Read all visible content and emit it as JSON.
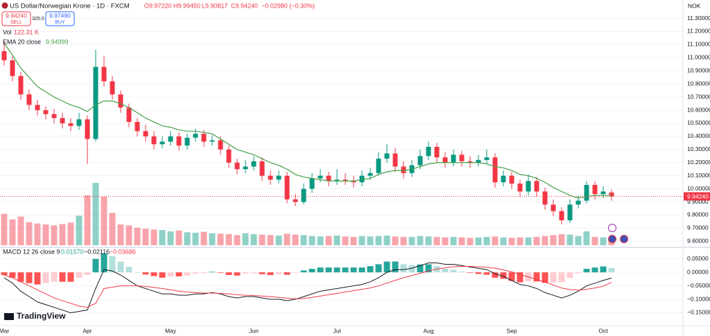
{
  "chart_data": [
    {
      "type": "candlestick",
      "title": "US Dollar/Norwegian Krone · 1D · FXCM",
      "ohlc_text": [
        "O9.97220",
        "H9.99450",
        "L9.90817",
        "C9.94240",
        "−0.02980 (−0.30%)"
      ],
      "sell": {
        "price": "9.94240",
        "label": "SELL"
      },
      "spread": "325.0",
      "buy": {
        "price": "9.97490",
        "label": "BUY"
      },
      "currency": "NOK",
      "watermark": "TradingView",
      "categories": [
        "Mar",
        null,
        null,
        null,
        null,
        null,
        null,
        null,
        null,
        null,
        "Apr",
        null,
        null,
        null,
        null,
        null,
        null,
        null,
        null,
        null,
        "May",
        null,
        null,
        null,
        null,
        null,
        null,
        null,
        null,
        null,
        "Jun",
        null,
        null,
        null,
        null,
        null,
        null,
        null,
        null,
        null,
        "Jul",
        null,
        null,
        null,
        null,
        null,
        null,
        null,
        null,
        null,
        null,
        "Aug",
        null,
        null,
        null,
        null,
        null,
        null,
        null,
        null,
        null,
        "Sep",
        null,
        null,
        null,
        null,
        null,
        null,
        null,
        null,
        null,
        null,
        "Oct",
        null
      ],
      "ohlc": [
        [
          11.05,
          11.12,
          10.94,
          10.98
        ],
        [
          10.98,
          11.01,
          10.82,
          10.86
        ],
        [
          10.86,
          10.89,
          10.68,
          10.72
        ],
        [
          10.72,
          10.76,
          10.6,
          10.64
        ],
        [
          10.64,
          10.68,
          10.56,
          10.6
        ],
        [
          10.6,
          10.63,
          10.53,
          10.57
        ],
        [
          10.57,
          10.61,
          10.5,
          10.54
        ],
        [
          10.54,
          10.58,
          10.46,
          10.5
        ],
        [
          10.5,
          10.54,
          10.44,
          10.48
        ],
        [
          10.48,
          10.58,
          10.45,
          10.53
        ],
        [
          10.53,
          10.56,
          10.19,
          10.38
        ],
        [
          10.38,
          11.06,
          10.36,
          10.93
        ],
        [
          10.93,
          11.01,
          10.78,
          10.82
        ],
        [
          10.82,
          10.86,
          10.68,
          10.72
        ],
        [
          10.72,
          10.75,
          10.58,
          10.62
        ],
        [
          10.62,
          10.65,
          10.47,
          10.51
        ],
        [
          10.51,
          10.54,
          10.4,
          10.44
        ],
        [
          10.44,
          10.49,
          10.36,
          10.4
        ],
        [
          10.4,
          10.44,
          10.3,
          10.34
        ],
        [
          10.34,
          10.4,
          10.31,
          10.36
        ],
        [
          10.36,
          10.44,
          10.33,
          10.4
        ],
        [
          10.4,
          10.43,
          10.29,
          10.33
        ],
        [
          10.33,
          10.42,
          10.3,
          10.39
        ],
        [
          10.39,
          10.46,
          10.36,
          10.42
        ],
        [
          10.42,
          10.45,
          10.32,
          10.36
        ],
        [
          10.36,
          10.41,
          10.33,
          10.37
        ],
        [
          10.37,
          10.4,
          10.26,
          10.3
        ],
        [
          10.3,
          10.33,
          10.16,
          10.2
        ],
        [
          10.2,
          10.23,
          10.11,
          10.15
        ],
        [
          10.15,
          10.22,
          10.12,
          10.17
        ],
        [
          10.17,
          10.25,
          10.14,
          10.21
        ],
        [
          10.21,
          10.24,
          10.06,
          10.1
        ],
        [
          10.1,
          10.14,
          10.03,
          10.07
        ],
        [
          10.07,
          10.14,
          10.04,
          10.1
        ],
        [
          10.1,
          10.13,
          9.89,
          9.92
        ],
        [
          9.92,
          9.96,
          9.87,
          9.9
        ],
        [
          9.9,
          10.04,
          9.88,
          10.0
        ],
        [
          10.0,
          10.12,
          9.97,
          10.08
        ],
        [
          10.08,
          10.15,
          10.05,
          10.1
        ],
        [
          10.1,
          10.13,
          10.02,
          10.06
        ],
        [
          10.06,
          10.15,
          10.03,
          10.07
        ],
        [
          10.07,
          10.12,
          10.03,
          10.06
        ],
        [
          10.06,
          10.1,
          10.01,
          10.05
        ],
        [
          10.05,
          10.14,
          10.02,
          10.1
        ],
        [
          10.1,
          10.16,
          10.07,
          10.12
        ],
        [
          10.12,
          10.28,
          10.1,
          10.23
        ],
        [
          10.23,
          10.34,
          10.2,
          10.27
        ],
        [
          10.27,
          10.31,
          10.13,
          10.17
        ],
        [
          10.17,
          10.21,
          10.08,
          10.12
        ],
        [
          10.12,
          10.22,
          10.09,
          10.18
        ],
        [
          10.18,
          10.3,
          10.15,
          10.25
        ],
        [
          10.25,
          10.36,
          10.22,
          10.32
        ],
        [
          10.32,
          10.35,
          10.2,
          10.24
        ],
        [
          10.24,
          10.28,
          10.16,
          10.2
        ],
        [
          10.2,
          10.3,
          10.17,
          10.26
        ],
        [
          10.26,
          10.29,
          10.17,
          10.21
        ],
        [
          10.21,
          10.25,
          10.16,
          10.2
        ],
        [
          10.2,
          10.26,
          10.17,
          10.22
        ],
        [
          10.22,
          10.3,
          10.19,
          10.24
        ],
        [
          10.24,
          10.27,
          10.01,
          10.05
        ],
        [
          10.05,
          10.14,
          10.02,
          10.1
        ],
        [
          10.1,
          10.13,
          10.0,
          10.04
        ],
        [
          10.04,
          10.07,
          9.94,
          9.98
        ],
        [
          9.98,
          10.11,
          9.95,
          10.06
        ],
        [
          10.06,
          10.09,
          9.94,
          9.98
        ],
        [
          9.98,
          10.01,
          9.84,
          9.88
        ],
        [
          9.88,
          9.92,
          9.79,
          9.83
        ],
        [
          9.83,
          9.86,
          9.73,
          9.76
        ],
        [
          9.76,
          9.92,
          9.74,
          9.88
        ],
        [
          9.88,
          9.95,
          9.85,
          9.91
        ],
        [
          9.91,
          10.06,
          9.89,
          10.03
        ],
        [
          10.03,
          10.06,
          9.92,
          9.96
        ],
        [
          9.96,
          10.02,
          9.93,
          9.98
        ],
        [
          9.9722,
          9.9945,
          9.90817,
          9.9424
        ]
      ],
      "up_color": "#089981",
      "down_color": "#f23645",
      "volume": {
        "name": "Vol",
        "value_label": "122.31 K",
        "values": [
          680,
          560,
          620,
          500,
          470,
          450,
          430,
          460,
          490,
          640,
          1080,
          1350,
          1050,
          700,
          450,
          430,
          380,
          360,
          340,
          330,
          300,
          320,
          280,
          270,
          290,
          260,
          250,
          240,
          220,
          260,
          240,
          230,
          220,
          210,
          250,
          230,
          220,
          200,
          190,
          200,
          210,
          190,
          180,
          200,
          190,
          200,
          210,
          190,
          180,
          180,
          200,
          190,
          180,
          170,
          180,
          170,
          160,
          170,
          180,
          190,
          170,
          160,
          170,
          170,
          180,
          200,
          220,
          240,
          230,
          200,
          300,
          180,
          170,
          122.31
        ]
      },
      "ema": {
        "name": "EMA 20 close",
        "value_label": "9.94999",
        "color": "#43a047",
        "values": [
          11.11,
          11.02,
          10.92,
          10.85,
          10.78,
          10.74,
          10.7,
          10.67,
          10.64,
          10.62,
          10.59,
          10.64,
          10.67,
          10.67,
          10.65,
          10.62,
          10.58,
          10.54,
          10.51,
          10.48,
          10.47,
          10.45,
          10.44,
          10.44,
          10.43,
          10.42,
          10.38,
          10.34,
          10.3,
          10.28,
          10.26,
          10.23,
          10.2,
          10.18,
          10.15,
          10.11,
          10.09,
          10.08,
          10.07,
          10.06,
          10.06,
          10.06,
          10.06,
          10.07,
          10.08,
          10.11,
          10.13,
          10.14,
          10.14,
          10.15,
          10.17,
          10.19,
          10.2,
          10.2,
          10.2,
          10.2,
          10.2,
          10.2,
          10.19,
          10.17,
          10.16,
          10.14,
          10.11,
          10.1,
          10.08,
          10.05,
          10.01,
          9.98,
          9.95,
          9.93,
          9.94,
          9.95,
          9.95,
          9.94999
        ]
      },
      "last_price": {
        "value": 9.9424,
        "label": "9.94240"
      },
      "ylim": [
        9.57,
        11.44
      ],
      "yticks": [
        {
          "value": 9.6,
          "label": "9.60000"
        },
        {
          "value": 9.7,
          "label": "9.70000"
        },
        {
          "value": 9.8,
          "label": "9.80000"
        },
        {
          "value": 9.9,
          "label": "9.90000"
        },
        {
          "value": 10.0,
          "label": "10.00000"
        },
        {
          "value": 10.1,
          "label": "10.10000"
        },
        {
          "value": 10.2,
          "label": "10.20000"
        },
        {
          "value": 10.3,
          "label": "10.30000"
        },
        {
          "value": 10.4,
          "label": "10.40000"
        },
        {
          "value": 10.5,
          "label": "10.50000"
        },
        {
          "value": 10.6,
          "label": "10.60000"
        },
        {
          "value": 10.7,
          "label": "10.70000"
        },
        {
          "value": 10.8,
          "label": "10.80000"
        },
        {
          "value": 10.9,
          "label": "10.90000"
        },
        {
          "value": 11.0,
          "label": "11.00000"
        },
        {
          "value": 11.1,
          "label": "11.10000"
        },
        {
          "value": 11.2,
          "label": "11.20000"
        },
        {
          "value": 11.3,
          "label": "11.30000"
        }
      ],
      "grid": true
    },
    {
      "type": "macd",
      "name": "MACD 12 26 close 9",
      "histogram": {
        "value_label": "0.01570",
        "colors": [
          "#26a69a",
          "#b2dfdb",
          "#ff5252",
          "#ffcdd2"
        ],
        "values": [
          -0.01,
          -0.02,
          -0.035,
          -0.04,
          -0.045,
          -0.04,
          -0.035,
          -0.035,
          -0.035,
          -0.02,
          -0.01,
          0.05,
          0.07,
          0.06,
          0.04,
          0.02,
          0.0,
          -0.008,
          -0.014,
          -0.02,
          -0.015,
          -0.015,
          -0.012,
          -0.005,
          -0.003,
          0.002,
          -0.002,
          -0.01,
          -0.012,
          -0.005,
          -0.004,
          -0.007,
          -0.01,
          -0.007,
          -0.009,
          -0.002,
          0.007,
          0.013,
          0.018,
          0.018,
          0.018,
          0.018,
          0.018,
          0.018,
          0.023,
          0.03,
          0.04,
          0.04,
          0.03,
          0.027,
          0.029,
          0.03,
          0.023,
          0.013,
          0.009,
          0.003,
          -0.002,
          -0.006,
          -0.009,
          -0.02,
          -0.024,
          -0.032,
          -0.037,
          -0.033,
          -0.034,
          -0.039,
          -0.038,
          -0.037,
          -0.021,
          -0.004,
          0.013,
          0.018,
          0.022,
          0.0157
        ]
      },
      "macd": {
        "value_label": "−0.02116",
        "color": "#131722",
        "values": [
          -0.02,
          -0.04,
          -0.07,
          -0.09,
          -0.11,
          -0.12,
          -0.13,
          -0.14,
          -0.15,
          -0.145,
          -0.14,
          -0.06,
          0.01,
          0.005,
          -0.01,
          -0.03,
          -0.05,
          -0.06,
          -0.07,
          -0.08,
          -0.08,
          -0.085,
          -0.085,
          -0.08,
          -0.08,
          -0.075,
          -0.08,
          -0.09,
          -0.095,
          -0.09,
          -0.09,
          -0.095,
          -0.1,
          -0.1,
          -0.105,
          -0.1,
          -0.09,
          -0.08,
          -0.07,
          -0.065,
          -0.06,
          -0.055,
          -0.05,
          -0.045,
          -0.035,
          -0.02,
          0.0,
          0.01,
          0.01,
          0.015,
          0.025,
          0.035,
          0.035,
          0.03,
          0.03,
          0.025,
          0.02,
          0.015,
          0.01,
          -0.005,
          -0.015,
          -0.03,
          -0.045,
          -0.05,
          -0.06,
          -0.075,
          -0.085,
          -0.095,
          -0.085,
          -0.07,
          -0.05,
          -0.04,
          -0.03,
          -0.02116
        ]
      },
      "signal": {
        "value_label": "−0.03686",
        "color": "#f23645",
        "values": [
          -0.01,
          -0.02,
          -0.035,
          -0.05,
          -0.065,
          -0.08,
          -0.095,
          -0.105,
          -0.115,
          -0.125,
          -0.13,
          -0.115,
          -0.06,
          -0.055,
          -0.05,
          -0.05,
          -0.05,
          -0.052,
          -0.056,
          -0.06,
          -0.065,
          -0.07,
          -0.073,
          -0.075,
          -0.077,
          -0.077,
          -0.078,
          -0.08,
          -0.083,
          -0.085,
          -0.086,
          -0.088,
          -0.09,
          -0.093,
          -0.096,
          -0.098,
          -0.097,
          -0.093,
          -0.088,
          -0.083,
          -0.078,
          -0.073,
          -0.068,
          -0.063,
          -0.058,
          -0.05,
          -0.04,
          -0.03,
          -0.02,
          -0.012,
          -0.004,
          0.005,
          0.012,
          0.017,
          0.021,
          0.022,
          0.022,
          0.021,
          0.019,
          0.015,
          0.009,
          0.002,
          -0.008,
          -0.017,
          -0.026,
          -0.036,
          -0.047,
          -0.058,
          -0.064,
          -0.066,
          -0.063,
          -0.058,
          -0.052,
          -0.03686
        ]
      },
      "ylim": [
        -0.19,
        0.08
      ],
      "yticks": [
        {
          "value": 0.05,
          "label": "0.05000"
        },
        {
          "value": 0,
          "label": "0.00000"
        },
        {
          "value": -0.05,
          "label": "−0.05000"
        },
        {
          "value": -0.1,
          "label": "−0.10000"
        },
        {
          "value": -0.15,
          "label": "−0.15000"
        }
      ],
      "grid": true
    }
  ]
}
